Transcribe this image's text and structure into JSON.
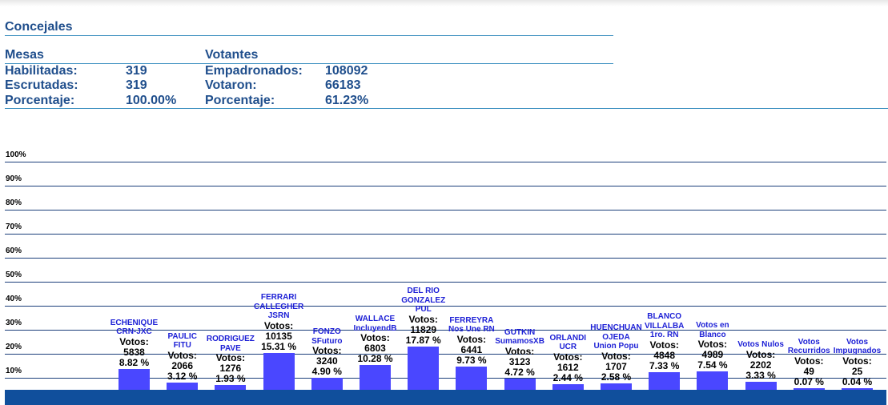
{
  "title": "Concejales",
  "mesas": {
    "header": "Mesas",
    "rows": [
      {
        "label": "Habilitadas:",
        "value": "319"
      },
      {
        "label": "Escrutadas:",
        "value": "319"
      },
      {
        "label": "Porcentaje:",
        "value": "100.00%"
      }
    ]
  },
  "votantes": {
    "header": "Votantes",
    "rows": [
      {
        "label": "Empadronados:",
        "value": "108092"
      },
      {
        "label": "Votaron:",
        "value": "66183"
      },
      {
        "label": "Porcentaje:",
        "value": "61.23%"
      }
    ]
  },
  "colors": {
    "heading": "#1f4e8c",
    "bar": "#4a47ff",
    "party_label": "#1e21d6",
    "grid": "#1b3e7a",
    "footer": "#104f9c"
  },
  "chart_data": {
    "type": "bar",
    "ylim": [
      0,
      100
    ],
    "y_ticks": [
      "100%",
      "90%",
      "80%",
      "70%",
      "60%",
      "50%",
      "40%",
      "30%",
      "20%",
      "10%"
    ],
    "votes_label": "Votos:",
    "categories": [
      {
        "lines": [
          "ECHENIQUE",
          "CRN-JXC"
        ],
        "votes": "5838",
        "percent_label": "8.82 %",
        "value": 8.82
      },
      {
        "lines": [
          "PAULIC",
          "FITU"
        ],
        "votes": "2066",
        "percent_label": "3.12 %",
        "value": 3.12
      },
      {
        "lines": [
          "RODRIGUEZ",
          "PAVE"
        ],
        "votes": "1276",
        "percent_label": "1.93 %",
        "value": 1.93
      },
      {
        "lines": [
          "FERRARI",
          "CALLEGHER",
          "JSRN"
        ],
        "votes": "10135",
        "percent_label": "15.31 %",
        "value": 15.31
      },
      {
        "lines": [
          "FONZO",
          "SFuturo"
        ],
        "votes": "3240",
        "percent_label": "4.90 %",
        "value": 4.9
      },
      {
        "lines": [
          "WALLACE",
          "IncluyendB"
        ],
        "votes": "6803",
        "percent_label": "10.28 %",
        "value": 10.28
      },
      {
        "lines": [
          "DEL RIO",
          "GONZALEZ",
          "PUL"
        ],
        "votes": "11829",
        "percent_label": "17.87 %",
        "value": 17.87
      },
      {
        "lines": [
          "FERREYRA",
          "Nos Une RN"
        ],
        "votes": "6441",
        "percent_label": "9.73 %",
        "value": 9.73
      },
      {
        "lines": [
          "GUTKIN",
          "SumamosXB"
        ],
        "votes": "3123",
        "percent_label": "4.72 %",
        "value": 4.72
      },
      {
        "lines": [
          "ORLANDI",
          "UCR"
        ],
        "votes": "1612",
        "percent_label": "2.44 %",
        "value": 2.44
      },
      {
        "lines": [
          "HUENCHUAN",
          "OJEDA",
          "Union Popu"
        ],
        "votes": "1707",
        "percent_label": "2.58 %",
        "value": 2.58
      },
      {
        "lines": [
          "BLANCO",
          "VILLALBA",
          "1ro. RN"
        ],
        "votes": "4848",
        "percent_label": "7.33 %",
        "value": 7.33
      },
      {
        "lines": [
          "Votos en",
          "Blanco"
        ],
        "votes": "4989",
        "percent_label": "7.54 %",
        "value": 7.54
      },
      {
        "lines": [
          "Votos Nulos"
        ],
        "votes": "2202",
        "percent_label": "3.33 %",
        "value": 3.33
      },
      {
        "lines": [
          "Votos",
          "Recurridos"
        ],
        "votes": "49",
        "percent_label": "0.07 %",
        "value": 0.07
      },
      {
        "lines": [
          "Votos",
          "Impugnados"
        ],
        "votes": "25",
        "percent_label": "0.04 %",
        "value": 0.04
      }
    ]
  }
}
